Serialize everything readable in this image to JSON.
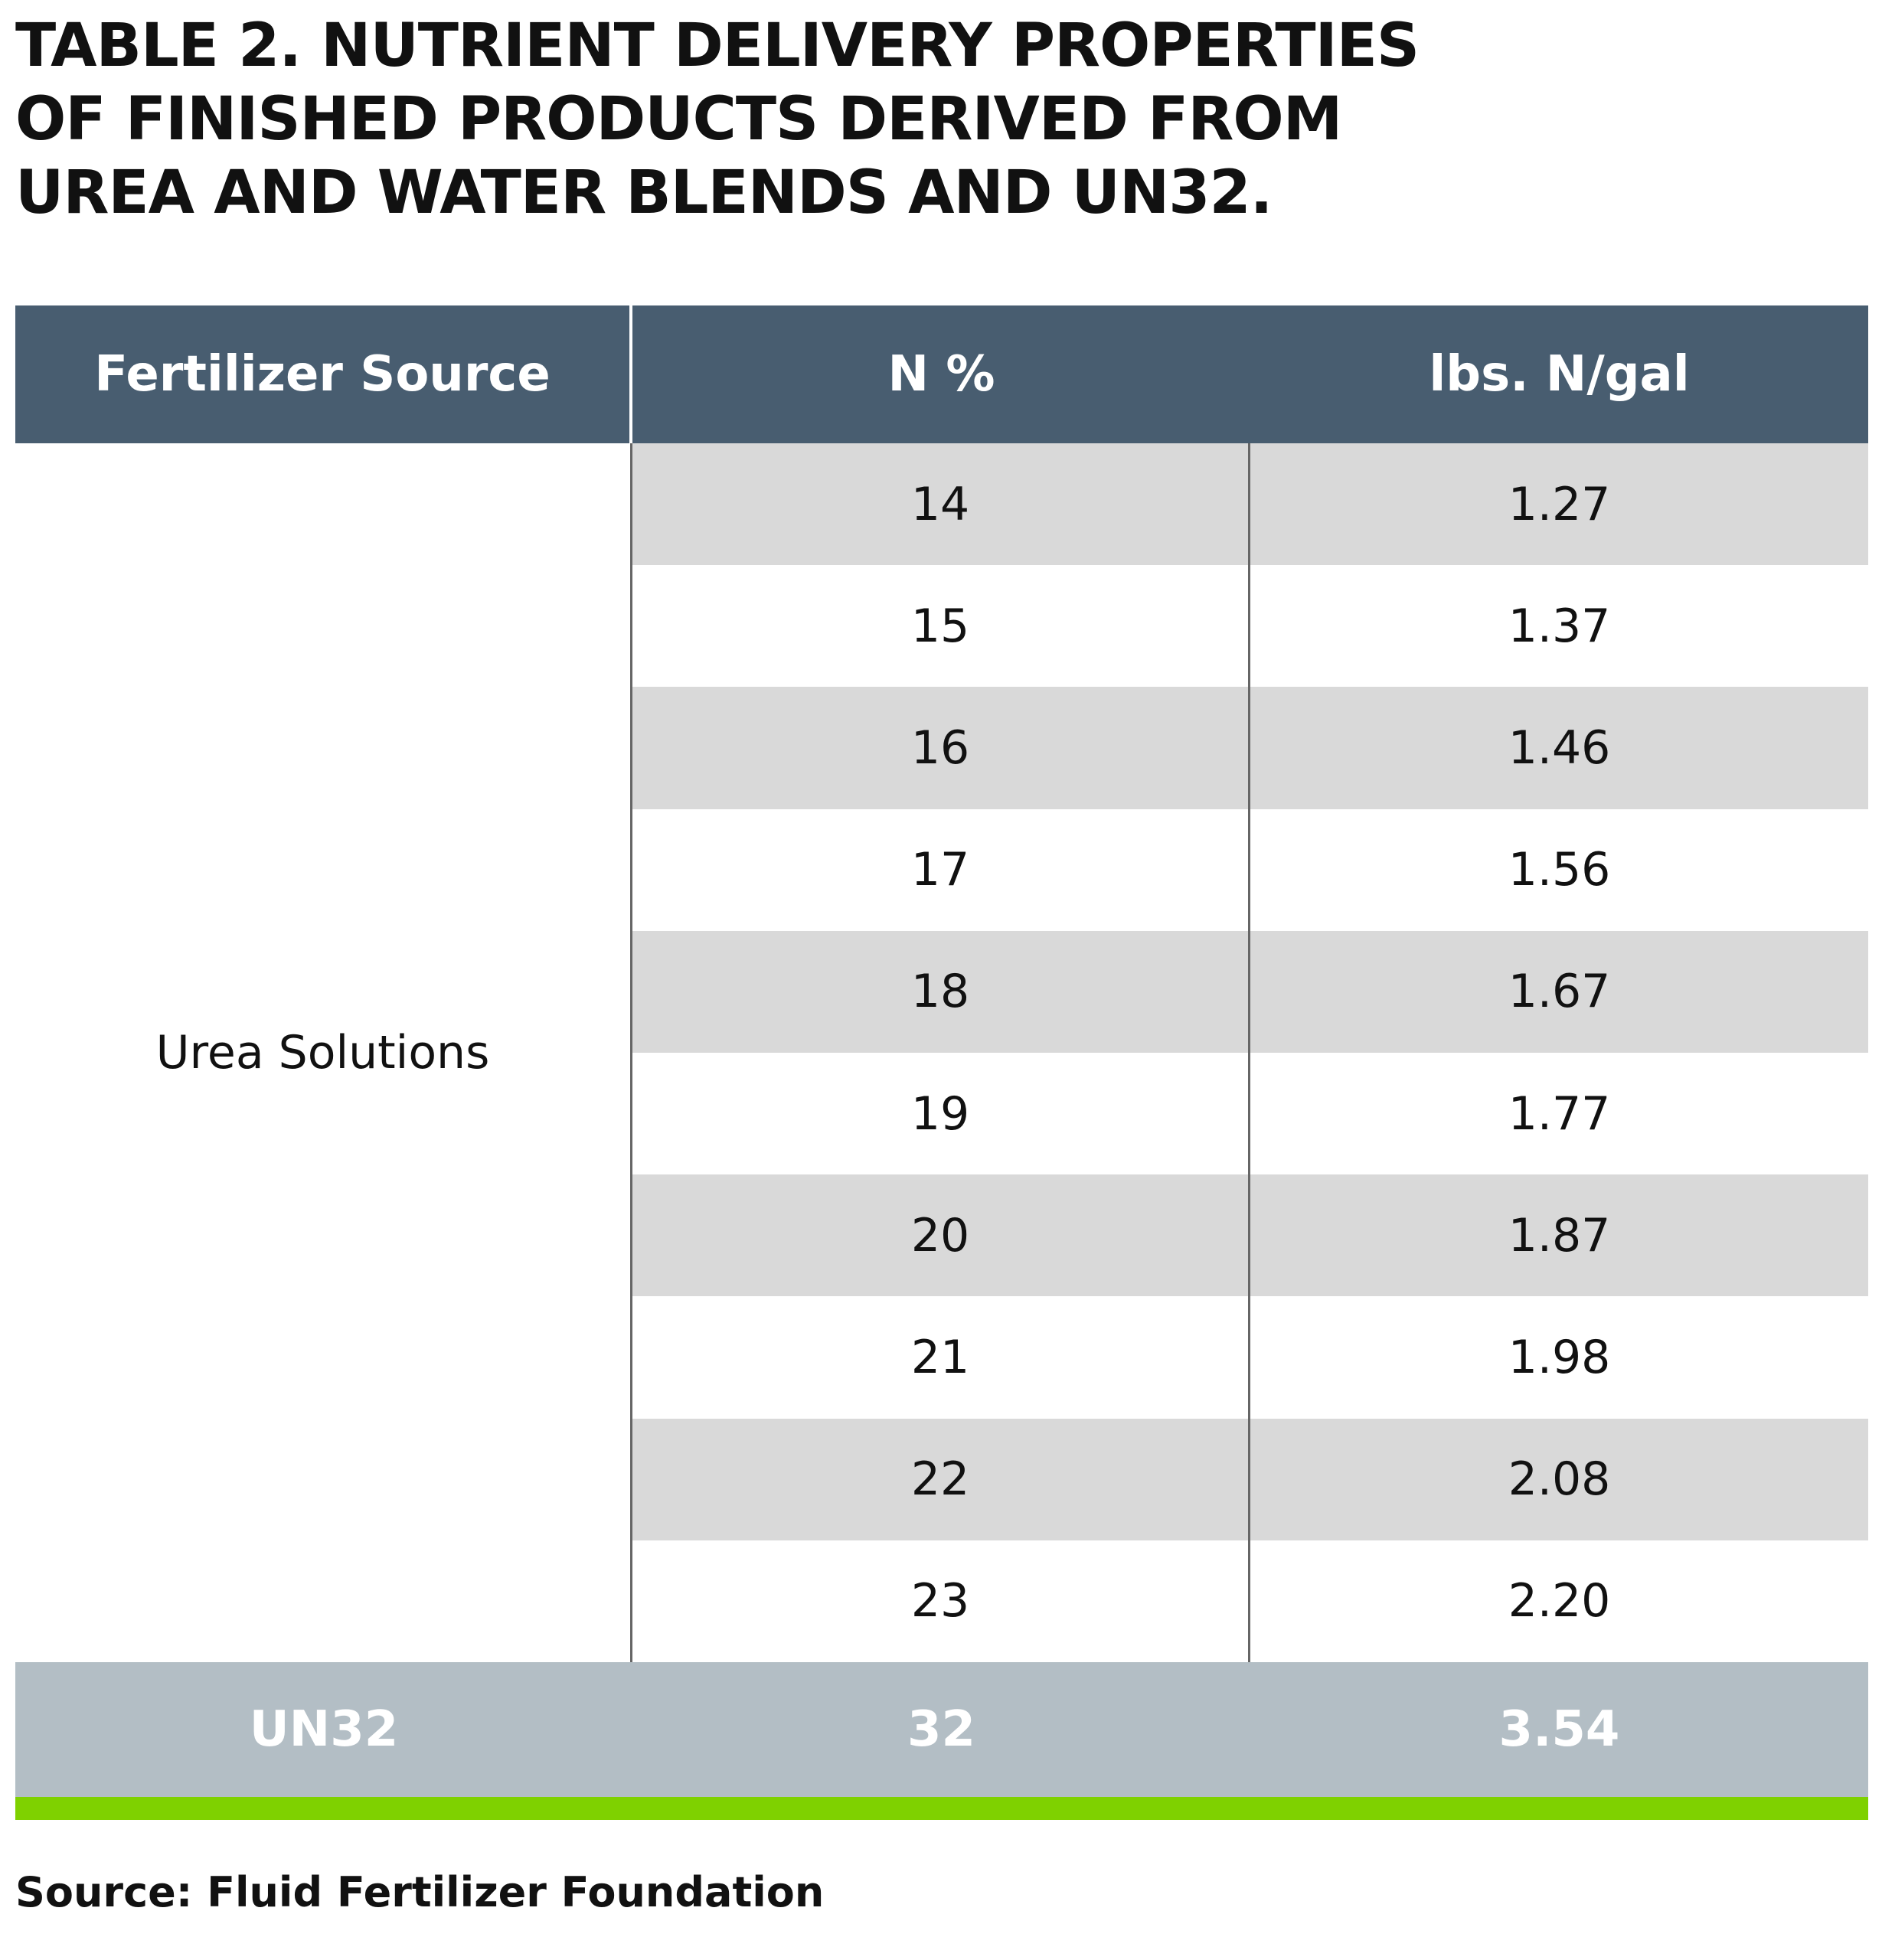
{
  "title": "TABLE 2. NUTRIENT DELIVERY PROPERTIES OF FINISHED PRODUCTS DERIVED FROM UREA AND WATER BLENDS AND UN32.",
  "table": {
    "headers": [
      "Fertilizer Source",
      "N %",
      "lbs. N/gal"
    ],
    "urea_group_label": "Urea Solutions",
    "urea_rows": [
      {
        "n": "14",
        "lbs": "1.27"
      },
      {
        "n": "15",
        "lbs": "1.37"
      },
      {
        "n": "16",
        "lbs": "1.46"
      },
      {
        "n": "17",
        "lbs": "1.56"
      },
      {
        "n": "18",
        "lbs": "1.67"
      },
      {
        "n": "19",
        "lbs": "1.77"
      },
      {
        "n": "20",
        "lbs": "1.87"
      },
      {
        "n": "21",
        "lbs": "1.98"
      },
      {
        "n": "22",
        "lbs": "2.08"
      },
      {
        "n": "23",
        "lbs": "2.20"
      }
    ],
    "un32_row": {
      "source": "UN32",
      "n": "32",
      "lbs": "3.54"
    }
  },
  "source_note": "Source: Fluid Fertilizer Foundation",
  "colors": {
    "header_bg": "#485d70",
    "shaded_row": "#d9d9d9",
    "footer_row_bg": "#b3bec5",
    "accent_bar": "#7fd100"
  }
}
